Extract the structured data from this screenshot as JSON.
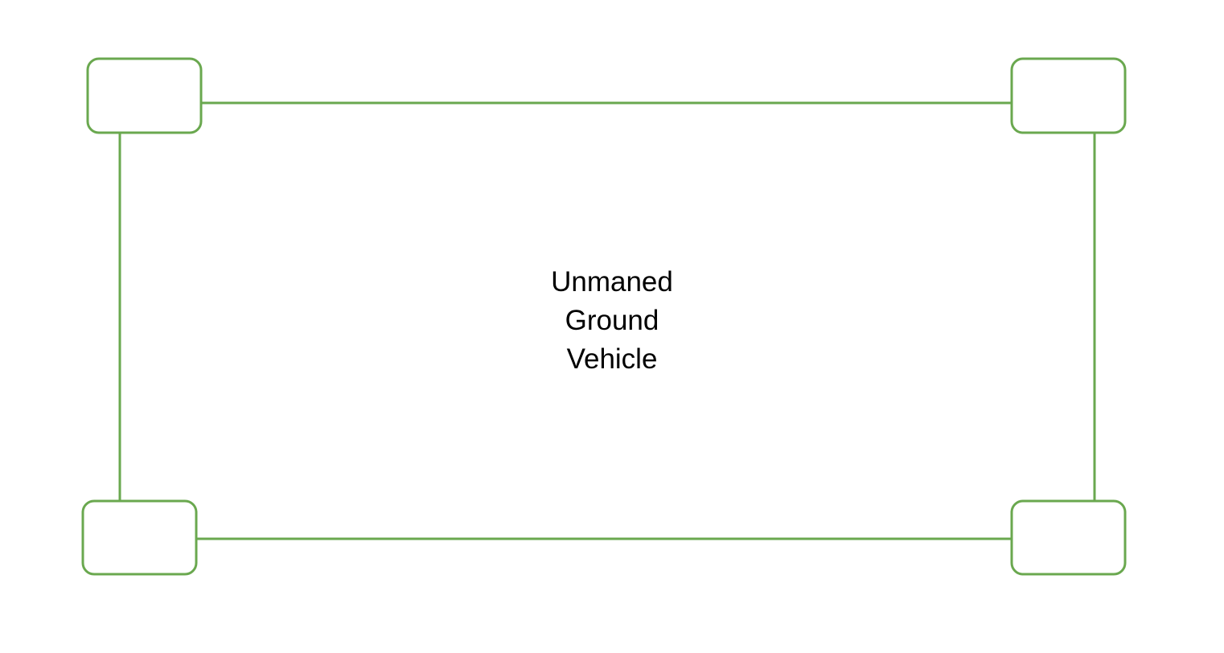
{
  "diagram": {
    "label_lines": [
      "Unmaned",
      "Ground",
      "Vehicle"
    ],
    "colors": {
      "outline": "#6aa84f",
      "background": "#ffffff",
      "text": "#000000"
    }
  }
}
